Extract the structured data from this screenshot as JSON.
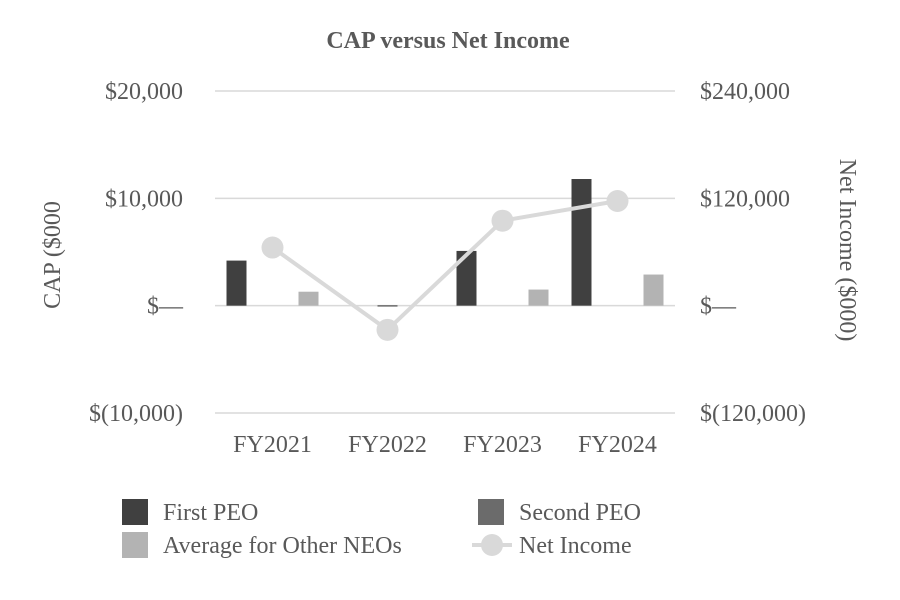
{
  "chart_data": {
    "type": "bar",
    "title": "CAP versus Net Income",
    "categories": [
      "FY2021",
      "FY2022",
      "FY2023",
      "FY2024"
    ],
    "left_axis": {
      "label": "CAP ($000",
      "ylim": [
        -10000,
        20000
      ],
      "ticks": [
        20000,
        10000,
        0,
        -10000
      ],
      "tick_labels": [
        "$20,000",
        "$10,000",
        "$—",
        "$(10,000)"
      ]
    },
    "right_axis": {
      "label": "Net Income ($000)",
      "ylim": [
        -120000,
        240000
      ],
      "ticks": [
        240000,
        120000,
        0,
        -120000
      ],
      "tick_labels": [
        "$240,000",
        "$120,000",
        "$—",
        "$(120,000)"
      ]
    },
    "series": [
      {
        "name": "First PEO",
        "type": "bar",
        "axis": "left",
        "color": "#404040",
        "values": [
          4200,
          null,
          5100,
          11800
        ]
      },
      {
        "name": "Second PEO",
        "type": "bar",
        "axis": "left",
        "color": "#6b6b6b",
        "values": [
          null,
          50,
          null,
          null
        ]
      },
      {
        "name": "Average for Other NEOs",
        "type": "bar",
        "axis": "left",
        "color": "#b3b3b3",
        "values": [
          1300,
          null,
          1500,
          2900
        ]
      },
      {
        "name": "Net Income",
        "type": "line",
        "axis": "right",
        "color": "#d9d9d9",
        "values": [
          65000,
          -27000,
          95000,
          117000
        ]
      }
    ],
    "legend": {
      "position": "bottom",
      "items": [
        "First PEO",
        "Second PEO",
        "Average for Other NEOs",
        "Net Income"
      ]
    },
    "grid": true
  }
}
